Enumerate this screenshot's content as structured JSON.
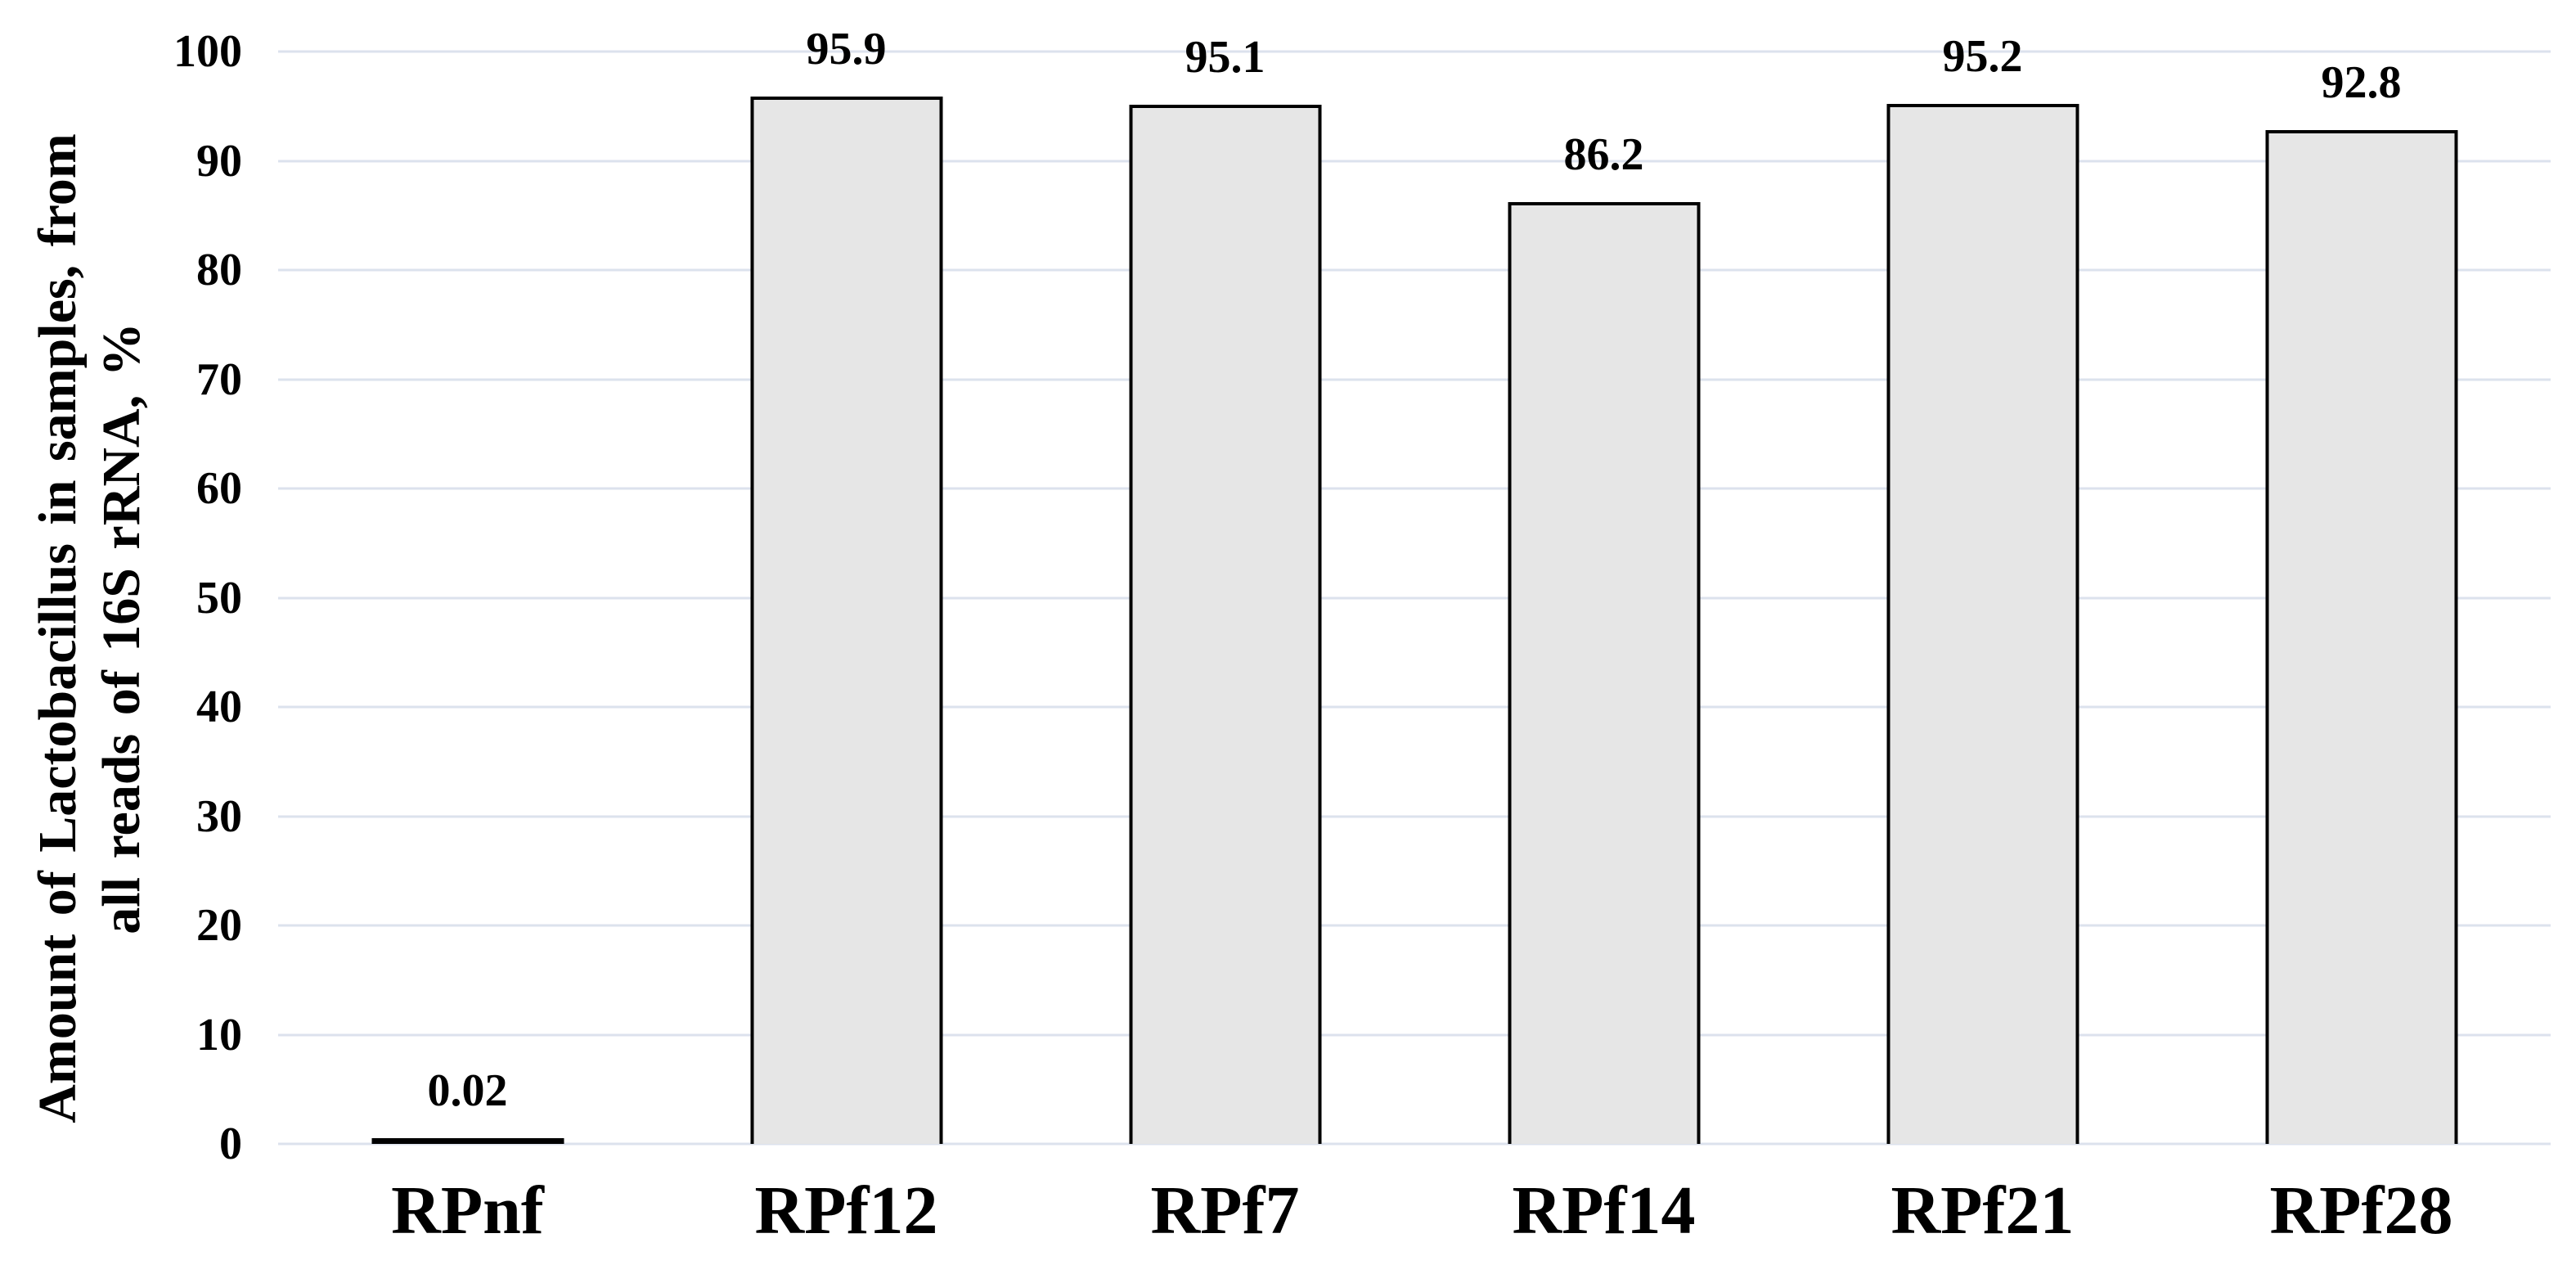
{
  "chart_data": {
    "type": "bar",
    "categories": [
      "RPnf",
      "RPf12",
      "RPf7",
      "RPf14",
      "RPf21",
      "RPf28"
    ],
    "values": [
      0.02,
      95.9,
      95.1,
      86.2,
      95.2,
      92.8
    ],
    "data_labels": [
      "0.02",
      "95.9",
      "95.1",
      "86.2",
      "95.2",
      "92.8"
    ],
    "title": "",
    "xlabel": "",
    "ylabel": "Amount of Lactobacillus in samples, from all reads of 16S rRNA, %",
    "ylabel_lines": [
      "Amount of Lactobacillus in samples, from",
      "all reads of 16S rRNA, %"
    ],
    "ylim": [
      0,
      100
    ],
    "ytick_step": 10,
    "yticks": [
      "100",
      "90",
      "80",
      "70",
      "60",
      "50",
      "40",
      "30",
      "20",
      "10",
      "0"
    ],
    "grid": "horizontal",
    "legend": "none",
    "bar_label_position": "above",
    "colors": {
      "background": "#ffffff",
      "bar_fill": "#e6e6e6",
      "bar_border": "#000000",
      "gridline": "#dce2ed",
      "text": "#000000"
    }
  }
}
